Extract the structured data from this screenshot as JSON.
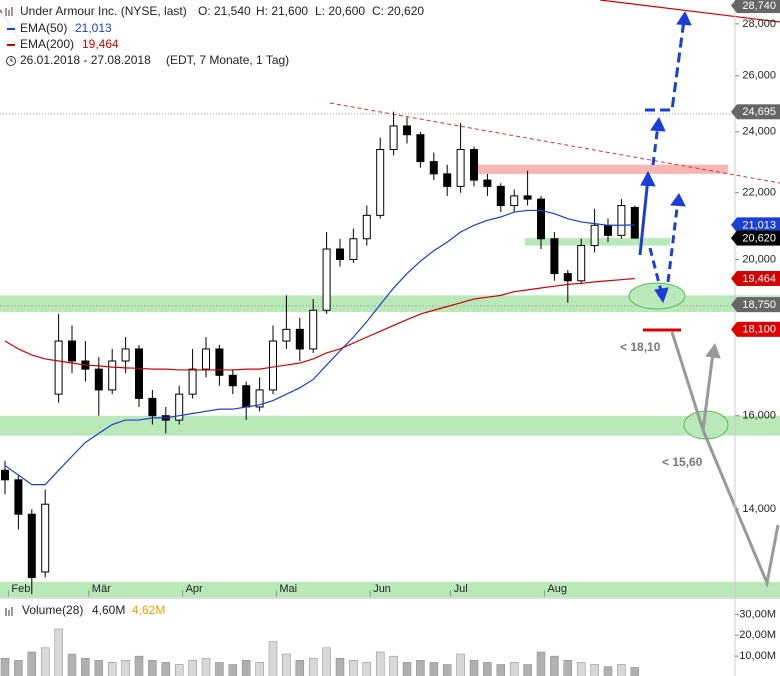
{
  "chart_data": {
    "type": "candlestick",
    "log_scale": true,
    "header": {
      "title": "Under Armour Inc. (NYSE, last)",
      "ohlc": [
        "O: 21,540",
        "H: 21,600",
        "L: 20,600",
        "C: 20,620"
      ],
      "range": "26.01.2018 - 27.08.2018",
      "range_note": "(EDT, 7 Monate, 1 Tag)"
    },
    "categories": [
      null,
      "Feb",
      null,
      null,
      null,
      null,
      null,
      "Mär",
      null,
      null,
      null,
      null,
      null,
      null,
      "Apr",
      null,
      null,
      null,
      null,
      null,
      null,
      "Mai",
      null,
      null,
      null,
      null,
      null,
      null,
      "Jun",
      null,
      null,
      null,
      null,
      null,
      "Jul",
      null,
      null,
      null,
      null,
      null,
      null,
      "Aug",
      null,
      null,
      null,
      null,
      null,
      null
    ],
    "open": [
      14.8,
      14.6,
      13.9,
      12.8,
      16.5,
      17.8,
      17.3,
      17.1,
      16.6,
      17.3,
      17.6,
      16.4,
      16.0,
      15.9,
      16.5,
      17.1,
      17.6,
      16.95,
      16.7,
      16.2,
      16.6,
      17.8,
      18.1,
      17.6,
      18.6,
      20.3,
      20.0,
      20.6,
      21.3,
      23.4,
      24.2,
      23.9,
      23.0,
      22.6,
      22.2,
      23.4,
      22.4,
      22.2,
      21.6,
      21.9,
      21.8,
      20.6,
      19.6,
      19.4,
      20.4,
      21.0,
      20.7,
      21.54
    ],
    "high": [
      15.0,
      14.7,
      14.0,
      14.4,
      18.5,
      18.2,
      17.8,
      17.4,
      17.6,
      17.9,
      17.7,
      16.6,
      16.2,
      16.7,
      17.6,
      17.9,
      17.7,
      17.1,
      16.8,
      16.9,
      18.2,
      19.0,
      18.4,
      18.9,
      20.8,
      20.6,
      20.9,
      21.6,
      23.8,
      24.7,
      24.5,
      24.0,
      23.3,
      22.9,
      24.3,
      23.5,
      22.6,
      22.3,
      22.1,
      22.7,
      21.9,
      20.8,
      19.7,
      20.6,
      21.5,
      21.2,
      21.8,
      21.6
    ],
    "low": [
      14.3,
      13.6,
      12.4,
      12.7,
      16.3,
      17.0,
      16.8,
      16.0,
      16.5,
      17.0,
      16.2,
      15.8,
      15.6,
      15.8,
      16.4,
      16.9,
      16.7,
      16.5,
      15.9,
      16.1,
      16.5,
      17.6,
      17.3,
      17.5,
      18.5,
      19.8,
      19.9,
      20.4,
      21.2,
      23.2,
      23.6,
      22.8,
      22.4,
      21.9,
      22.0,
      22.2,
      21.9,
      21.4,
      21.4,
      21.6,
      20.3,
      19.4,
      18.8,
      19.3,
      20.2,
      20.5,
      20.6,
      20.6
    ],
    "close": [
      14.6,
      13.9,
      12.7,
      14.1,
      17.8,
      17.3,
      17.1,
      16.6,
      17.3,
      17.6,
      16.4,
      16.0,
      15.9,
      16.5,
      17.1,
      17.6,
      16.95,
      16.7,
      16.2,
      16.6,
      17.8,
      18.1,
      17.6,
      18.6,
      20.3,
      20.0,
      20.6,
      21.3,
      23.4,
      24.2,
      23.9,
      23.0,
      22.6,
      22.2,
      23.4,
      22.4,
      22.2,
      21.6,
      21.9,
      21.8,
      20.6,
      19.6,
      19.4,
      20.4,
      21.0,
      20.7,
      21.6,
      20.62
    ],
    "series": [
      {
        "name": "EMA(50)",
        "last_label": "21,013",
        "color": "#1a3fd6",
        "values": [
          14.9,
          14.7,
          14.5,
          14.5,
          14.8,
          15.1,
          15.4,
          15.6,
          15.8,
          15.9,
          15.9,
          15.95,
          15.95,
          16.0,
          16.05,
          16.1,
          16.15,
          16.15,
          16.2,
          16.25,
          16.35,
          16.5,
          16.65,
          16.85,
          17.2,
          17.55,
          17.9,
          18.3,
          18.75,
          19.2,
          19.6,
          19.95,
          20.25,
          20.5,
          20.8,
          21.0,
          21.15,
          21.25,
          21.4,
          21.45,
          21.45,
          21.35,
          21.2,
          21.1,
          21.05,
          21.0,
          21.0,
          21.013
        ]
      },
      {
        "name": "EMA(200)",
        "last_label": "19,464",
        "color": "#d40000",
        "values": [
          17.8,
          17.6,
          17.45,
          17.35,
          17.3,
          17.25,
          17.2,
          17.18,
          17.15,
          17.13,
          17.12,
          17.1,
          17.1,
          17.08,
          17.08,
          17.08,
          17.08,
          17.08,
          17.1,
          17.1,
          17.15,
          17.2,
          17.25,
          17.35,
          17.5,
          17.6,
          17.75,
          17.9,
          18.05,
          18.2,
          18.35,
          18.5,
          18.6,
          18.7,
          18.8,
          18.9,
          18.95,
          19.0,
          19.1,
          19.15,
          19.2,
          19.25,
          19.3,
          19.33,
          19.37,
          19.4,
          19.43,
          19.464
        ]
      }
    ],
    "ylim": [
      12.35,
      28.97
    ],
    "yticks": [
      {
        "value": 14,
        "label": "14,000"
      },
      {
        "value": 16,
        "label": "16,000"
      },
      {
        "value": 20,
        "label": "20,000"
      },
      {
        "value": 22,
        "label": "22,000"
      },
      {
        "value": 24,
        "label": "24,000"
      },
      {
        "value": 26,
        "label": "26,000"
      },
      {
        "value": 28,
        "label": "28,000"
      }
    ],
    "price_tags": [
      {
        "value": 28.74,
        "label": "28,740",
        "color": "#666666"
      },
      {
        "value": 24.695,
        "label": "24,695",
        "color": "#666666"
      },
      {
        "value": 21.013,
        "label": "21,013",
        "color": "#1a3fd6"
      },
      {
        "value": 20.62,
        "label": "20,620",
        "color": "#000000"
      },
      {
        "value": 19.464,
        "label": "19,464",
        "color": "#d40000"
      },
      {
        "value": 18.75,
        "label": "18,750",
        "color": "#666666"
      },
      {
        "value": 18.1,
        "label": "18,100",
        "color": "#e00000"
      }
    ],
    "zones": [
      {
        "from": 18.55,
        "to": 19.0,
        "color": "#b9e8b9"
      },
      {
        "from": 15.55,
        "to": 16.0,
        "color": "#b9e8b9"
      },
      {
        "from": 12.35,
        "to": 12.62,
        "color": "#b9e8b9"
      },
      {
        "from": 20.4,
        "to": 20.62,
        "color": "#b9e8b9"
      },
      {
        "from": 22.6,
        "to": 22.9,
        "color": "#f7b5b5"
      }
    ],
    "annotations": [
      "< 18,10",
      "< 15,60"
    ],
    "volume": {
      "title": "Volume(28)",
      "current": "4,60M",
      "average": "4,62M",
      "average_color": "#f0a000",
      "values": [
        9,
        8,
        12,
        14,
        23,
        11,
        9,
        8,
        7,
        8,
        10,
        8,
        7,
        6,
        8,
        9,
        7,
        6,
        8,
        7,
        17,
        11,
        8,
        9,
        14,
        9,
        8,
        7,
        12,
        10,
        7,
        8,
        7,
        6,
        11,
        8,
        7,
        6,
        7,
        6,
        12,
        10,
        8,
        7,
        6,
        5,
        6,
        4.6
      ],
      "ylim": [
        0,
        35
      ],
      "yticks": [
        {
          "value": 10,
          "label": "10,00M"
        },
        {
          "value": 20,
          "label": "20,00M"
        },
        {
          "value": 30,
          "label": "30,00M"
        }
      ]
    }
  }
}
